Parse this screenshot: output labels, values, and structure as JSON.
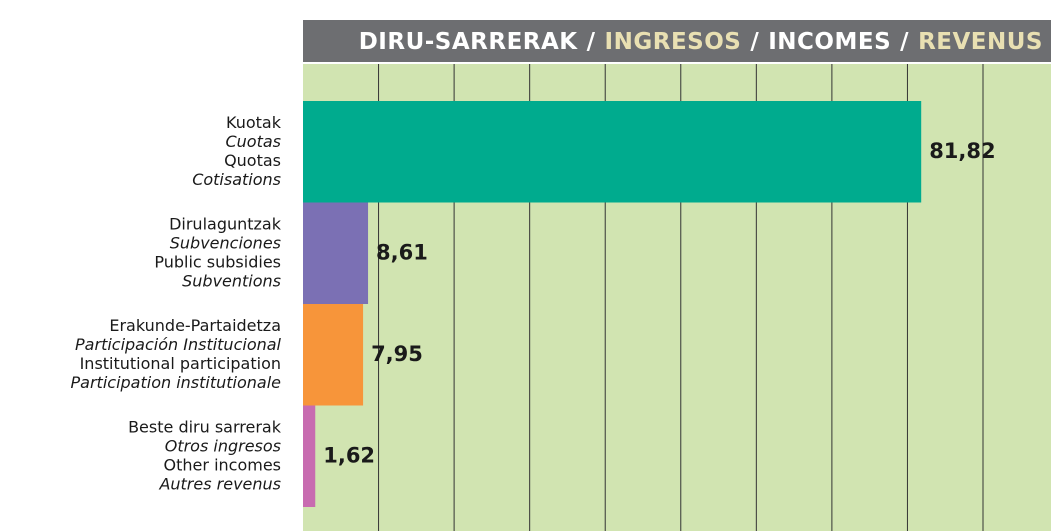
{
  "chart_data": {
    "type": "barh",
    "title": [
      "DIRU-SARRERAK",
      "/",
      "INGRESOS",
      "/",
      "INCOMES",
      "/",
      "REVENUS"
    ],
    "categories": [
      [
        "Kuotak",
        "Cuotas",
        "Quotas",
        "Cotisations"
      ],
      [
        "Dirulaguntzak",
        "Subvenciones",
        "Public subsidies",
        "Subventions"
      ],
      [
        "Erakunde-Partaidetza",
        "Participación Institucional",
        "Institutional participation",
        "Participation institutionale"
      ],
      [
        "Beste diru sarrerak",
        "Otros ingresos",
        "Other incomes",
        "Autres revenus"
      ]
    ],
    "values": [
      81.82,
      8.61,
      7.95,
      1.62
    ],
    "value_labels": [
      "81,82",
      "8,61",
      "7,95",
      "1,62"
    ],
    "colors": [
      "#00ab8e",
      "#7b70b4",
      "#f7953a",
      "#c86bb0"
    ],
    "xlim": [
      0,
      99
    ],
    "xticks": [
      10,
      20,
      30,
      40,
      50,
      60,
      70,
      80,
      90
    ],
    "grid": true
  }
}
